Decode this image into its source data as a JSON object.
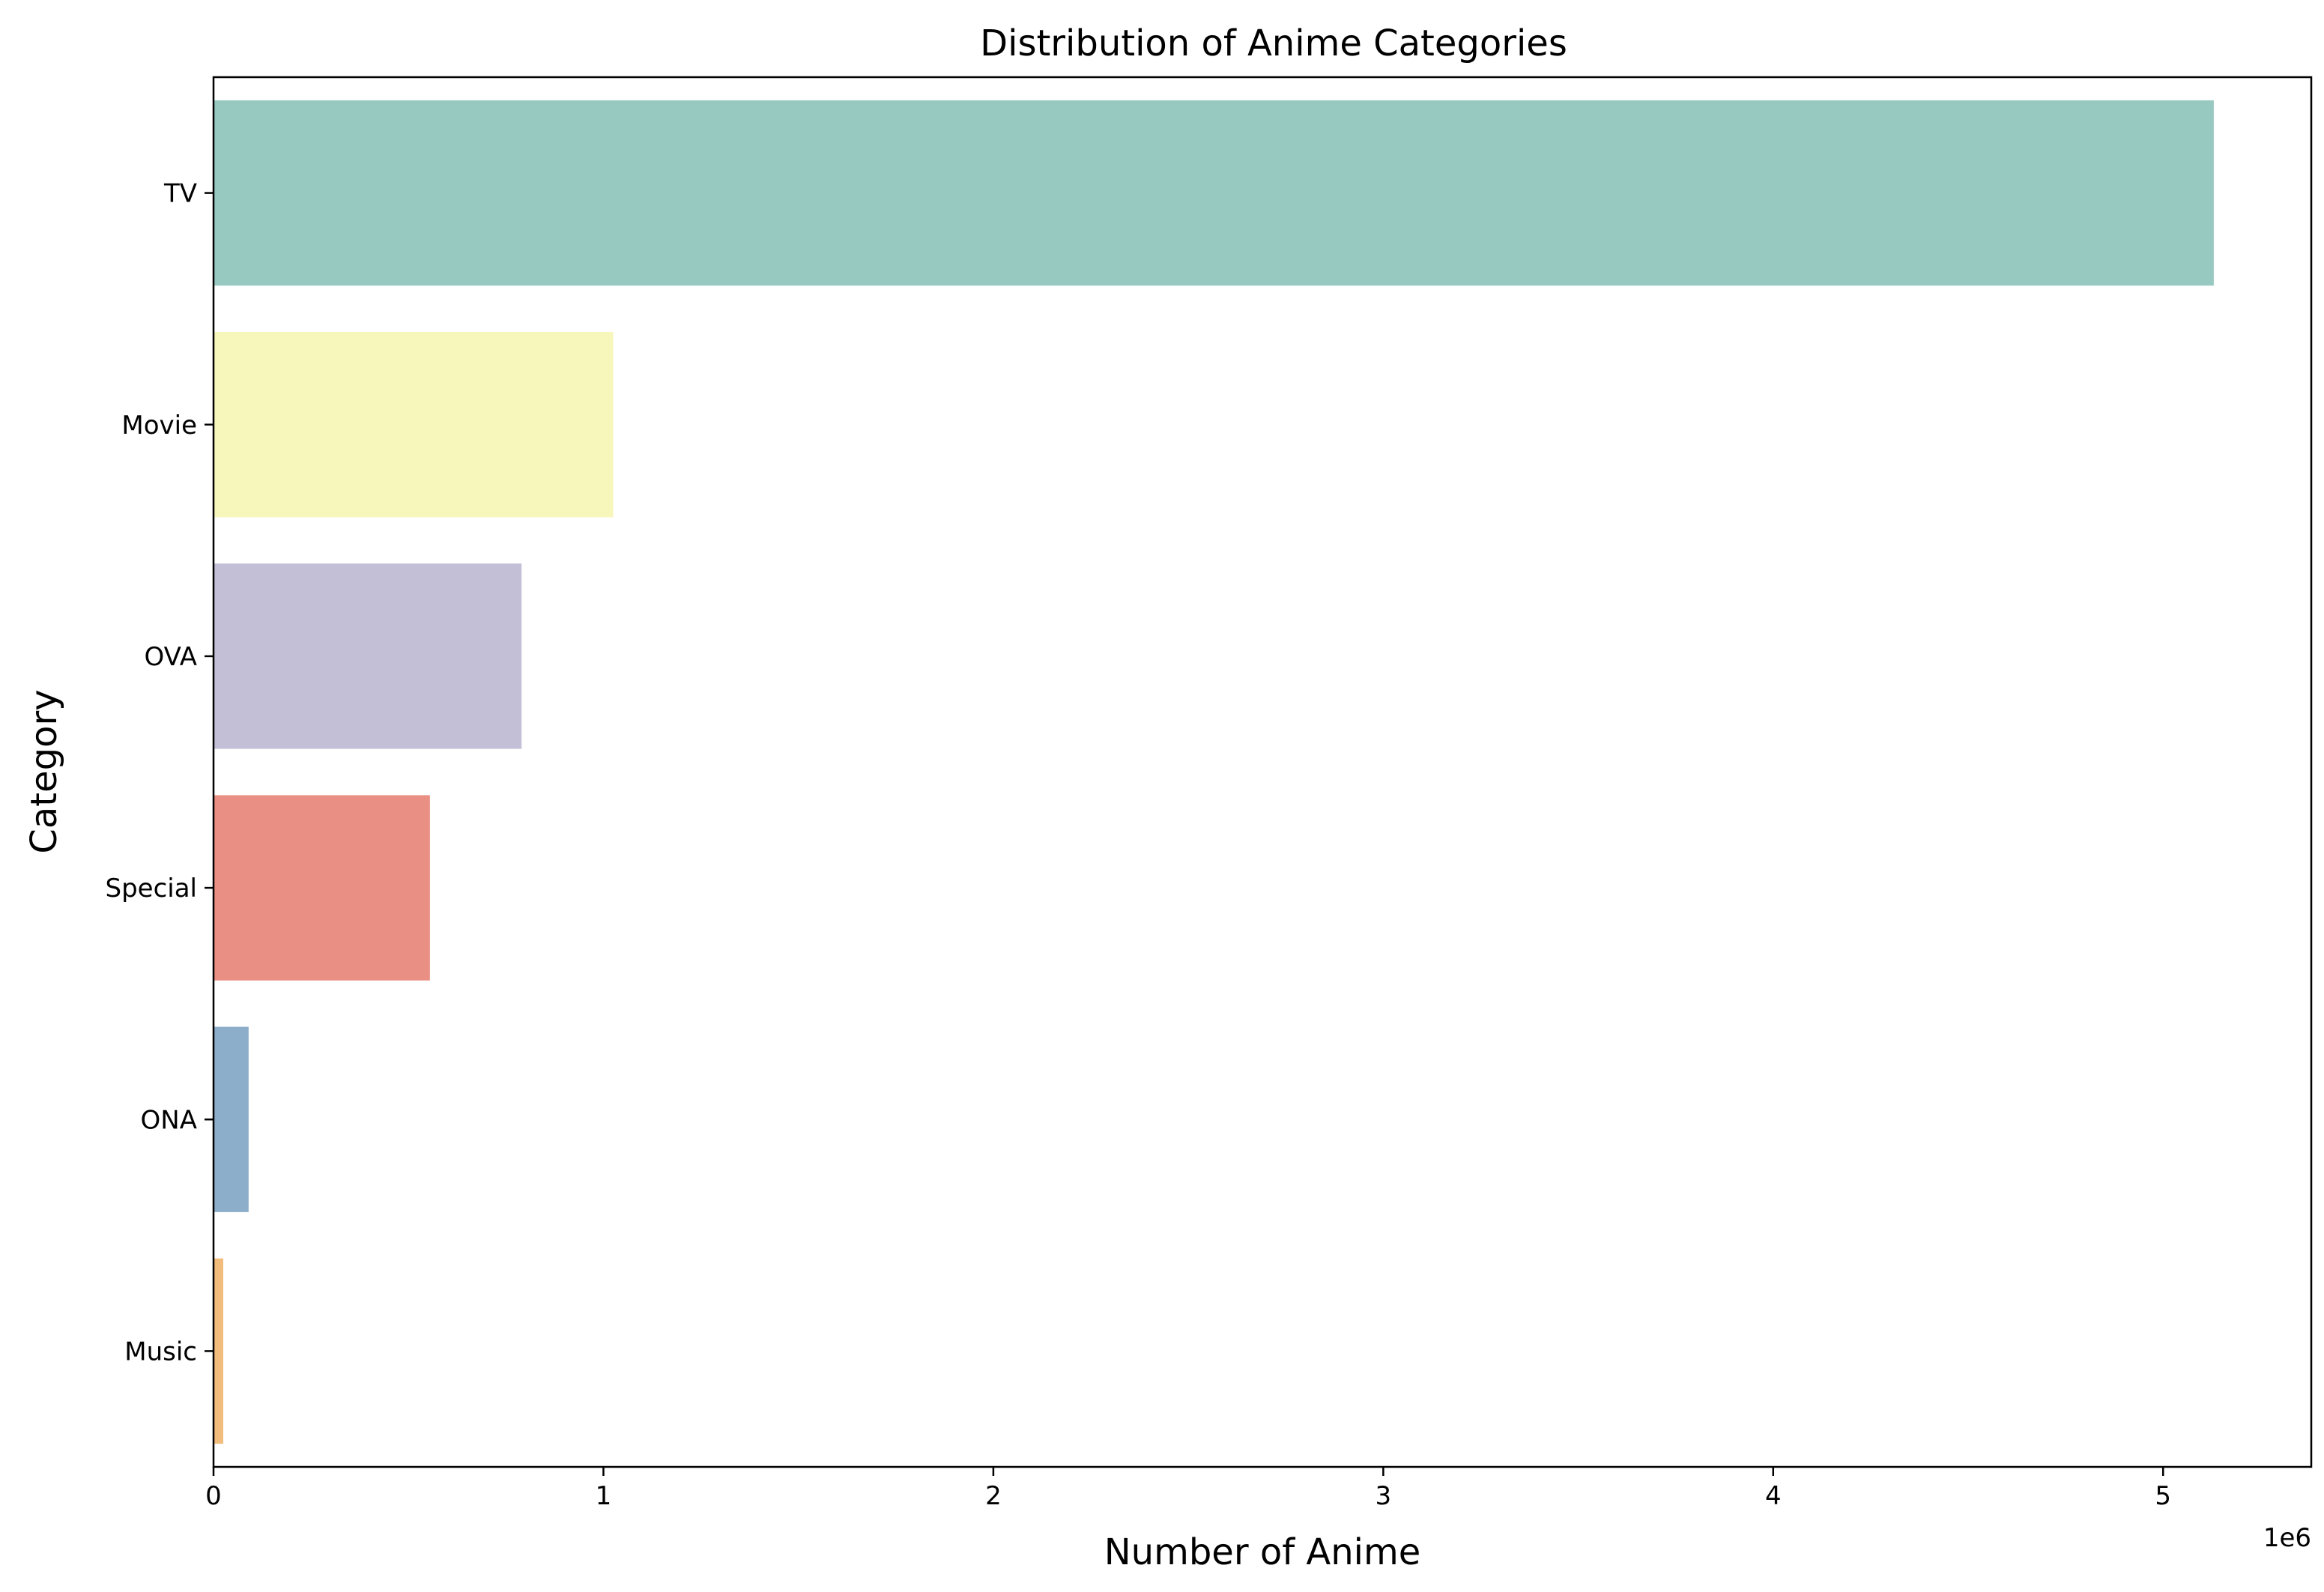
{
  "chart_data": {
    "type": "bar",
    "orientation": "horizontal",
    "title": "Distribution of Anime Categories",
    "xlabel": "Number of Anime",
    "ylabel": "Category",
    "x_offset_label": "1e6",
    "x_scale": 1000000,
    "xlim": [
      0,
      5380000
    ],
    "xticks": [
      0,
      1000000,
      2000000,
      3000000,
      4000000,
      5000000
    ],
    "xtick_labels": [
      "0",
      "1",
      "2",
      "3",
      "4",
      "5"
    ],
    "categories": [
      "TV",
      "Movie",
      "OVA",
      "Special",
      "ONA",
      "Music"
    ],
    "values": [
      5130000,
      1025000,
      790000,
      555000,
      90000,
      25000
    ],
    "colors": [
      "#97c9c1",
      "#f7f7bb",
      "#c2bfd6",
      "#ea8f83",
      "#8daecb",
      "#f2bc7c"
    ],
    "grid": false,
    "legend": "none"
  }
}
